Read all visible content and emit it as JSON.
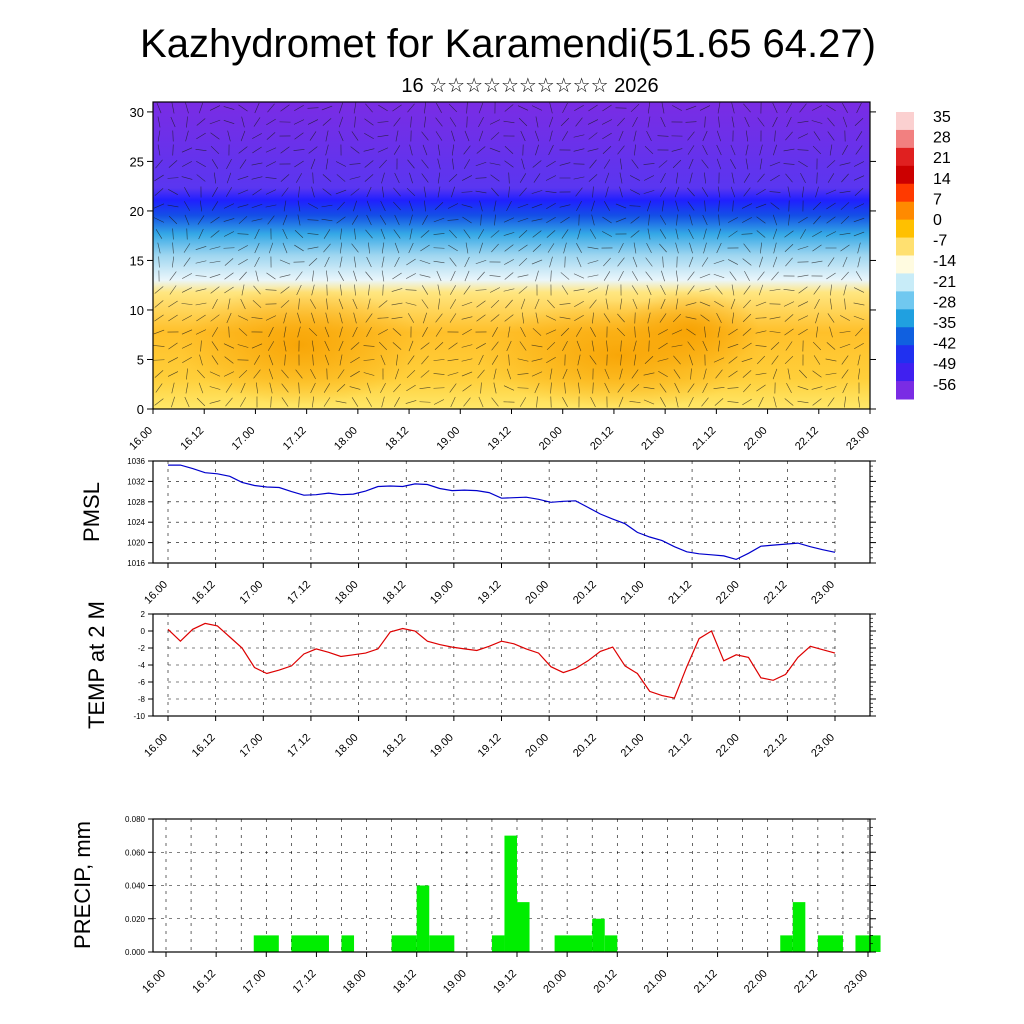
{
  "title": "Kazhydromet for Karamendi(51.65 64.27)",
  "subtitle": "16 ☆☆☆☆☆☆☆☆☆☆ 2026",
  "time_ticks": [
    "16.00",
    "16.12",
    "17.00",
    "17.12",
    "18.00",
    "18.12",
    "19.00",
    "19.12",
    "20.00",
    "20.12",
    "21.00",
    "21.12",
    "22.00",
    "22.12",
    "23.00"
  ],
  "colors": {
    "pmsl_line": "#0000cc",
    "temp_line": "#dd0000",
    "precip_bar": "#00ee00"
  },
  "chart_data": [
    {
      "type": "heatmap",
      "name": "cross-section",
      "x_ticks": [
        "16.00",
        "16.12",
        "17.00",
        "17.12",
        "18.00",
        "18.12",
        "19.00",
        "19.12",
        "20.00",
        "20.12",
        "21.00",
        "21.12",
        "22.00",
        "22.12",
        "23.00"
      ],
      "y_ticks": [
        0,
        5,
        10,
        15,
        20,
        25,
        30
      ],
      "ylim": [
        0,
        31
      ],
      "colorbar_labels": [
        "35",
        "28",
        "21",
        "14",
        "7",
        "0",
        "-7",
        "-14",
        "-21",
        "-28",
        "-35",
        "-42",
        "-49",
        "-56"
      ]
    },
    {
      "type": "line",
      "name": "pmsl",
      "ylabel": "PMSL",
      "ylim": [
        1016,
        1036
      ],
      "y_ticks": [
        1016,
        1020,
        1024,
        1028,
        1032,
        1036
      ],
      "x_hours": [
        0,
        3,
        6,
        9,
        12,
        15,
        18,
        21,
        24,
        27,
        30,
        33,
        36,
        39,
        42,
        45,
        48,
        51,
        54,
        57,
        60,
        63,
        66,
        69,
        72,
        75,
        78,
        81,
        84,
        87,
        90,
        93,
        96,
        99,
        102,
        105,
        108,
        111,
        114,
        117,
        120,
        123,
        126,
        129,
        132,
        135,
        138,
        141,
        144,
        147,
        150,
        153,
        156,
        159,
        162
      ],
      "values": [
        1035.2,
        1035.2,
        1034.5,
        1033.7,
        1033.5,
        1033.0,
        1031.8,
        1031.2,
        1030.9,
        1030.8,
        1030.0,
        1029.3,
        1029.4,
        1029.7,
        1029.4,
        1029.5,
        1030.1,
        1031.0,
        1031.1,
        1031.0,
        1031.5,
        1031.4,
        1030.6,
        1030.2,
        1030.3,
        1030.2,
        1029.8,
        1028.7,
        1028.8,
        1028.9,
        1028.5,
        1027.9,
        1028.1,
        1028.2,
        1026.9,
        1025.6,
        1024.6,
        1023.7,
        1022.0,
        1021.1,
        1020.4,
        1019.2,
        1018.2,
        1017.8,
        1017.6,
        1017.4,
        1016.7,
        1017.9,
        1019.3,
        1019.5,
        1019.7,
        1019.9,
        1019.2,
        1018.6,
        1018.1
      ]
    },
    {
      "type": "line",
      "name": "temp",
      "ylabel": "TEMP at 2 M",
      "ylim": [
        -10,
        2
      ],
      "y_ticks": [
        -10,
        -8,
        -6,
        -4,
        -2,
        0,
        2
      ],
      "x_hours": [
        0,
        3,
        6,
        9,
        12,
        15,
        18,
        21,
        24,
        27,
        30,
        33,
        36,
        39,
        42,
        45,
        48,
        51,
        54,
        57,
        60,
        63,
        66,
        69,
        72,
        75,
        78,
        81,
        84,
        87,
        90,
        93,
        96,
        99,
        102,
        105,
        108,
        111,
        114,
        117,
        120,
        123,
        126,
        129,
        132,
        135,
        138,
        141,
        144,
        147,
        150,
        153,
        156,
        159,
        162
      ],
      "values": [
        0.2,
        -1.2,
        0.2,
        0.9,
        0.6,
        -0.7,
        -2.0,
        -4.3,
        -5.0,
        -4.6,
        -4.1,
        -2.7,
        -2.1,
        -2.5,
        -3.0,
        -2.8,
        -2.6,
        -2.1,
        -0.1,
        0.3,
        0.0,
        -1.2,
        -1.6,
        -1.9,
        -2.1,
        -2.3,
        -1.8,
        -1.2,
        -1.5,
        -2.1,
        -2.6,
        -4.2,
        -4.9,
        -4.4,
        -3.5,
        -2.4,
        -1.9,
        -4.1,
        -5.0,
        -7.1,
        -7.6,
        -7.9,
        -4.2,
        -0.9,
        0.0,
        -3.5,
        -2.8,
        -3.1,
        -5.5,
        -5.8,
        -5.1,
        -3.1,
        -1.8,
        -2.2,
        -2.6
      ]
    },
    {
      "type": "bar",
      "name": "precip",
      "ylabel": "PRECIP, mm",
      "ylim": [
        0,
        0.08
      ],
      "y_ticks": [
        "0.000",
        "0.020",
        "0.040",
        "0.060",
        "0.080"
      ],
      "bins_hours": [
        [
          21,
          27
        ],
        [
          30,
          39
        ],
        [
          42,
          45
        ],
        [
          54,
          60
        ],
        [
          60,
          63
        ],
        [
          63,
          69
        ],
        [
          78,
          81
        ],
        [
          81,
          84
        ],
        [
          84,
          87
        ],
        [
          93,
          102
        ],
        [
          102,
          105
        ],
        [
          105,
          108
        ],
        [
          147,
          150
        ],
        [
          150,
          153
        ],
        [
          156,
          162
        ],
        [
          165,
          171
        ]
      ],
      "values": [
        0.01,
        0.01,
        0.01,
        0.01,
        0.04,
        0.01,
        0.01,
        0.07,
        0.03,
        0.01,
        0.02,
        0.01,
        0.01,
        0.03,
        0.01,
        0.01
      ]
    }
  ]
}
